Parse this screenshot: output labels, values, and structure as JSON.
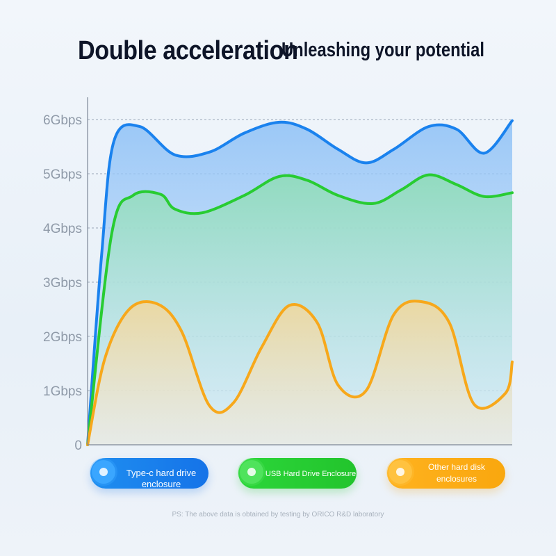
{
  "header": {
    "title": "Double acceleration",
    "subtitle": "Unleashing your potential"
  },
  "footnote": "PS: The above data is obtained by testing by ORICO R&D laboratory",
  "legend": [
    {
      "label": "Type-c hard drive enclosure",
      "color": "#1a82ee"
    },
    {
      "label": "USB Hard Drive Enclosure",
      "color": "#28cc32"
    },
    {
      "label": "Other hard disk enclosures",
      "color": "#f7a81b"
    }
  ],
  "chart_data": {
    "type": "area",
    "ylim": [
      0,
      6
    ],
    "xlim": [
      0,
      100
    ],
    "yticks": [
      {
        "value": 0,
        "label": "0"
      },
      {
        "value": 1,
        "label": "1Gbps"
      },
      {
        "value": 2,
        "label": "2Gbps"
      },
      {
        "value": 3,
        "label": "3Gbps"
      },
      {
        "value": 4,
        "label": "4Gbps"
      },
      {
        "value": 5,
        "label": "5Gbps"
      },
      {
        "value": 6,
        "label": "6Gbps"
      }
    ],
    "grid": true,
    "legend_position": "bottom",
    "series": [
      {
        "name": "Type-c hard drive enclosure",
        "color": "#1a82ee",
        "fill": "#9cc8f8",
        "points": [
          [
            0,
            0
          ],
          [
            3.3,
            3.5
          ],
          [
            6.2,
            5.6
          ],
          [
            12.3,
            5.87
          ],
          [
            20.5,
            5.35
          ],
          [
            28.7,
            5.4
          ],
          [
            36.9,
            5.75
          ],
          [
            45.1,
            5.95
          ],
          [
            51.7,
            5.82
          ],
          [
            59,
            5.45
          ],
          [
            65.6,
            5.2
          ],
          [
            72.1,
            5.45
          ],
          [
            80.3,
            5.87
          ],
          [
            86.9,
            5.82
          ],
          [
            93.4,
            5.38
          ],
          [
            100,
            5.98
          ]
        ]
      },
      {
        "name": "USB Hard Drive Enclosure",
        "color": "#28cc32",
        "fill": "#9fe0c2",
        "points": [
          [
            0,
            0
          ],
          [
            5.7,
            3.9
          ],
          [
            10.7,
            4.6
          ],
          [
            17.2,
            4.62
          ],
          [
            20.5,
            4.35
          ],
          [
            27,
            4.28
          ],
          [
            36.9,
            4.6
          ],
          [
            45.1,
            4.95
          ],
          [
            51.7,
            4.88
          ],
          [
            59,
            4.6
          ],
          [
            67.2,
            4.45
          ],
          [
            73.8,
            4.7
          ],
          [
            80.3,
            4.98
          ],
          [
            86.9,
            4.8
          ],
          [
            93.4,
            4.58
          ],
          [
            100,
            4.65
          ]
        ]
      },
      {
        "name": "Other hard disk enclosures",
        "color": "#f7a81b",
        "fill": "#f1dca8",
        "points": [
          [
            0,
            0
          ],
          [
            4.1,
            1.6
          ],
          [
            9.8,
            2.5
          ],
          [
            16.4,
            2.6
          ],
          [
            22.1,
            2.1
          ],
          [
            28.7,
            0.72
          ],
          [
            34.4,
            0.78
          ],
          [
            41,
            1.8
          ],
          [
            47.5,
            2.57
          ],
          [
            54.1,
            2.25
          ],
          [
            59,
            1.1
          ],
          [
            65.6,
            1.0
          ],
          [
            72.1,
            2.4
          ],
          [
            78.7,
            2.64
          ],
          [
            85.2,
            2.25
          ],
          [
            91,
            0.75
          ],
          [
            98.4,
            0.95
          ],
          [
            100,
            1.53
          ]
        ]
      }
    ]
  }
}
